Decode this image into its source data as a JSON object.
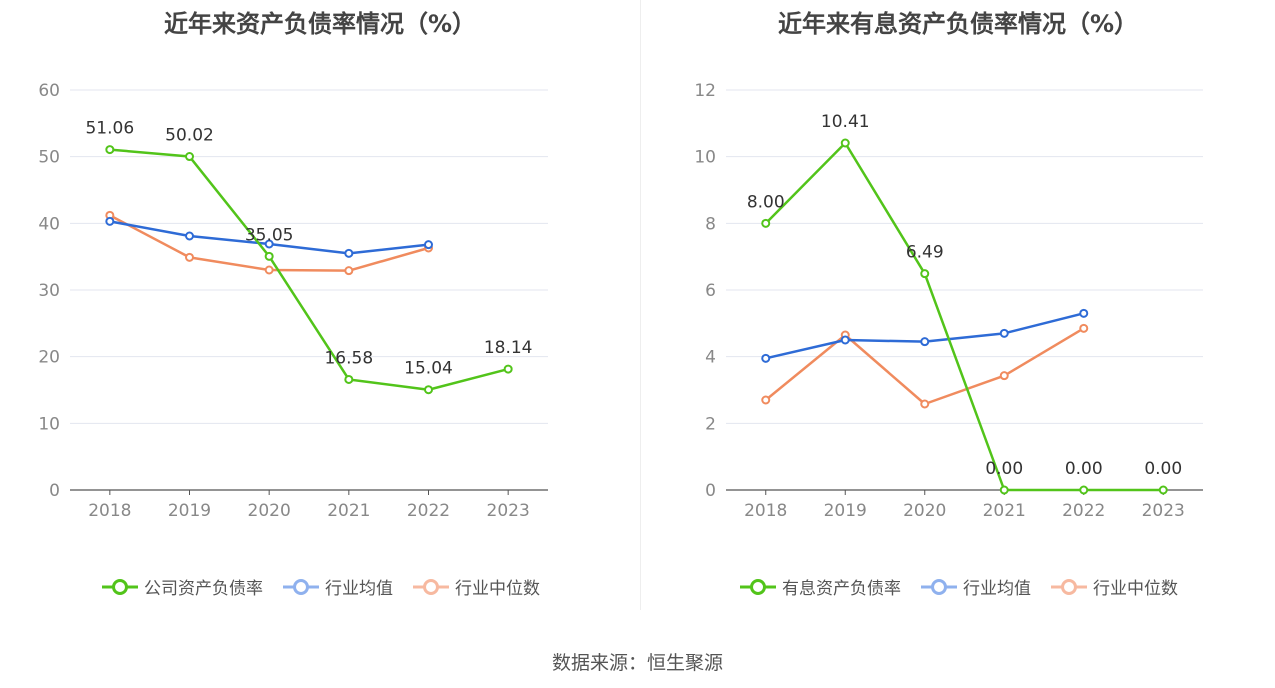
{
  "chart_data": [
    {
      "type": "line",
      "title": "近年来资产负债率情况（%）",
      "categories": [
        "2018",
        "2019",
        "2020",
        "2021",
        "2022",
        "2023"
      ],
      "ylim": [
        0,
        60
      ],
      "yticks": [
        0,
        10,
        20,
        30,
        40,
        50,
        60
      ],
      "grid": true,
      "legend_position": "bottom",
      "series": [
        {
          "name": "公司资产负债率",
          "color": "#52c41a",
          "values": [
            51.06,
            50.02,
            35.05,
            16.58,
            15.04,
            18.14
          ],
          "labels": [
            "51.06",
            "50.02",
            "35.05",
            "16.58",
            "15.04",
            "18.14"
          ]
        },
        {
          "name": "行业均值",
          "color": "#2e6bd6",
          "values": [
            40.3,
            38.1,
            36.9,
            35.5,
            36.8,
            null
          ]
        },
        {
          "name": "行业中位数",
          "color": "#f08b5e",
          "values": [
            41.2,
            34.9,
            33.0,
            32.9,
            36.3,
            null
          ]
        }
      ]
    },
    {
      "type": "line",
      "title": "近年来有息资产负债率情况（%）",
      "categories": [
        "2018",
        "2019",
        "2020",
        "2021",
        "2022",
        "2023"
      ],
      "ylim": [
        0,
        12
      ],
      "yticks": [
        0,
        2,
        4,
        6,
        8,
        10,
        12
      ],
      "grid": true,
      "legend_position": "bottom",
      "series": [
        {
          "name": "有息资产负债率",
          "color": "#52c41a",
          "values": [
            8.0,
            10.41,
            6.49,
            0.0,
            0.0,
            0.0
          ],
          "labels": [
            "8.00",
            "10.41",
            "6.49",
            "0.00",
            "0.00",
            "0.00"
          ]
        },
        {
          "name": "行业均值",
          "color": "#2e6bd6",
          "values": [
            3.95,
            4.5,
            4.45,
            4.7,
            5.3,
            null
          ]
        },
        {
          "name": "行业中位数",
          "color": "#f08b5e",
          "values": [
            2.7,
            4.65,
            2.58,
            3.43,
            4.85,
            null
          ]
        }
      ]
    }
  ],
  "source_text": "数据来源：恒生聚源",
  "legend_colors": {
    "primary": "#52c41a",
    "mean": "#8fb1ee",
    "median": "#f7b9a0"
  }
}
